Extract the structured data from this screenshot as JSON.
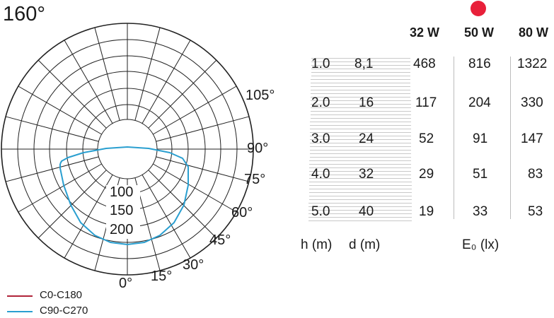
{
  "title": "160°",
  "polar": {
    "angle_labels": [
      "105°",
      "90°",
      "75°",
      "60°",
      "45°",
      "30°",
      "15°",
      "0°"
    ],
    "radial_labels": [
      "100",
      "150",
      "200"
    ],
    "curves": [
      {
        "name": "C0-C180",
        "color": "#b0243a"
      },
      {
        "name": "C90-C270",
        "color": "#2a9fd0"
      }
    ]
  },
  "highlight_color": "#e8203a",
  "table": {
    "wattages": [
      "32 W",
      "50 W",
      "80 W"
    ],
    "highlighted_wattage": "50 W",
    "rows": [
      {
        "h": "1.0",
        "d": "8,1",
        "e": [
          "468",
          "816",
          "1322"
        ]
      },
      {
        "h": "2.0",
        "d": "16",
        "e": [
          "117",
          "204",
          "330"
        ]
      },
      {
        "h": "3.0",
        "d": "24",
        "e": [
          "52",
          "91",
          "147"
        ]
      },
      {
        "h": "4.0",
        "d": "32",
        "e": [
          "29",
          "51",
          "83"
        ]
      },
      {
        "h": "5.0",
        "d": "40",
        "e": [
          "19",
          "33",
          "53"
        ]
      }
    ],
    "footer": {
      "h": "h (m)",
      "d": "d (m)",
      "e": "E₀ (lx)"
    }
  }
}
